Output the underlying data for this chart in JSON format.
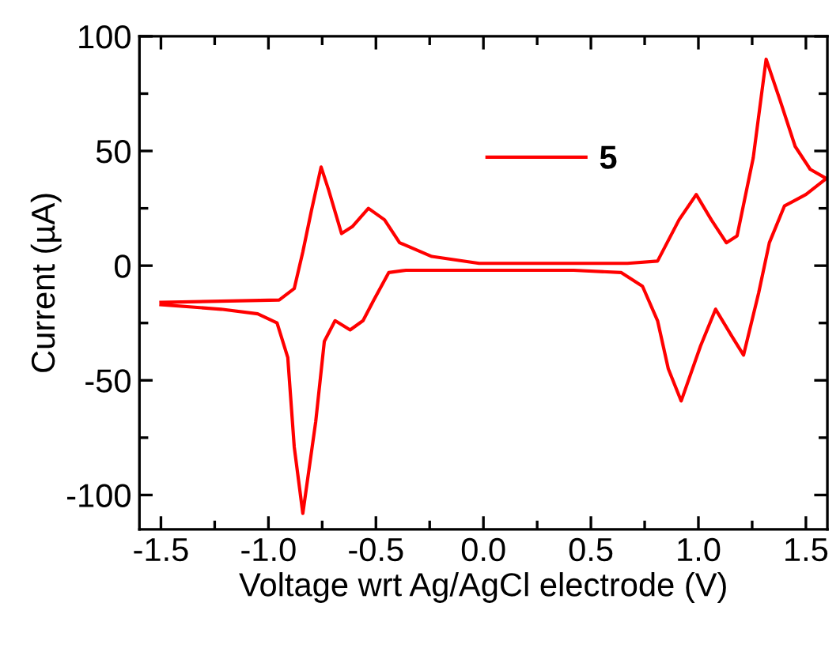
{
  "chart_data": {
    "type": "line",
    "xlabel": "Voltage wrt Ag/AgCl electrode (V)",
    "ylabel": "Current (µA)",
    "xlim": [
      -1.6,
      1.6
    ],
    "ylim": [
      -115,
      100
    ],
    "xticks": [
      {
        "value": -1.5,
        "label": "-1.5"
      },
      {
        "value": -1.25,
        "label": null
      },
      {
        "value": -1.0,
        "label": "-1.0"
      },
      {
        "value": -0.75,
        "label": null
      },
      {
        "value": -0.5,
        "label": "-0.5"
      },
      {
        "value": -0.25,
        "label": null
      },
      {
        "value": 0,
        "label": "0.0"
      },
      {
        "value": 0.25,
        "label": null
      },
      {
        "value": 0.5,
        "label": "0.5"
      },
      {
        "value": 0.75,
        "label": null
      },
      {
        "value": 1.0,
        "label": "1.0"
      },
      {
        "value": 1.25,
        "label": null
      },
      {
        "value": 1.5,
        "label": "1.5"
      }
    ],
    "yticks": [
      -100,
      {
        "value": -75,
        "label": null
      },
      -50,
      {
        "value": -25,
        "label": null
      },
      0,
      {
        "value": 25,
        "label": null
      },
      50,
      {
        "value": 75,
        "label": null
      },
      100
    ],
    "grid": false,
    "legend": "top",
    "marker": "none",
    "line_style": "solid",
    "series": [
      {
        "name": "5",
        "color": "#ff0000",
        "x": [
          -1.5,
          -0.95,
          -0.88,
          -0.84,
          -0.8,
          -0.755,
          -0.72,
          -0.66,
          -0.61,
          -0.535,
          -0.46,
          -0.39,
          -0.24,
          -0.02,
          0.32,
          0.67,
          0.81,
          0.91,
          0.99,
          1.06,
          1.13,
          1.18,
          1.255,
          1.315,
          1.38,
          1.45,
          1.52,
          1.595,
          1.5,
          1.4,
          1.33,
          1.28,
          1.21,
          1.157,
          1.08,
          1.01,
          0.92,
          0.86,
          0.81,
          0.74,
          0.64,
          0.42,
          0.13,
          -0.36,
          -0.44,
          -0.51,
          -0.56,
          -0.62,
          -0.69,
          -0.74,
          -0.78,
          -0.84,
          -0.88,
          -0.91,
          -0.96,
          -1.05,
          -1.22,
          -1.5
        ],
        "values": [
          -16,
          -15,
          -10,
          6,
          24,
          43,
          33,
          14,
          17,
          25,
          20,
          10,
          4,
          1,
          1,
          1,
          2,
          20,
          31,
          20,
          10,
          13,
          47,
          90,
          72,
          52,
          42,
          38,
          31,
          26,
          10,
          -12,
          -39,
          -31,
          -19,
          -35,
          -59,
          -45,
          -24,
          -9,
          -3,
          -2,
          -2,
          -2,
          -3,
          -15,
          -24,
          -28,
          -24,
          -33,
          -68,
          -108,
          -79,
          -40,
          -25,
          -21,
          -19,
          -17
        ]
      }
    ]
  }
}
